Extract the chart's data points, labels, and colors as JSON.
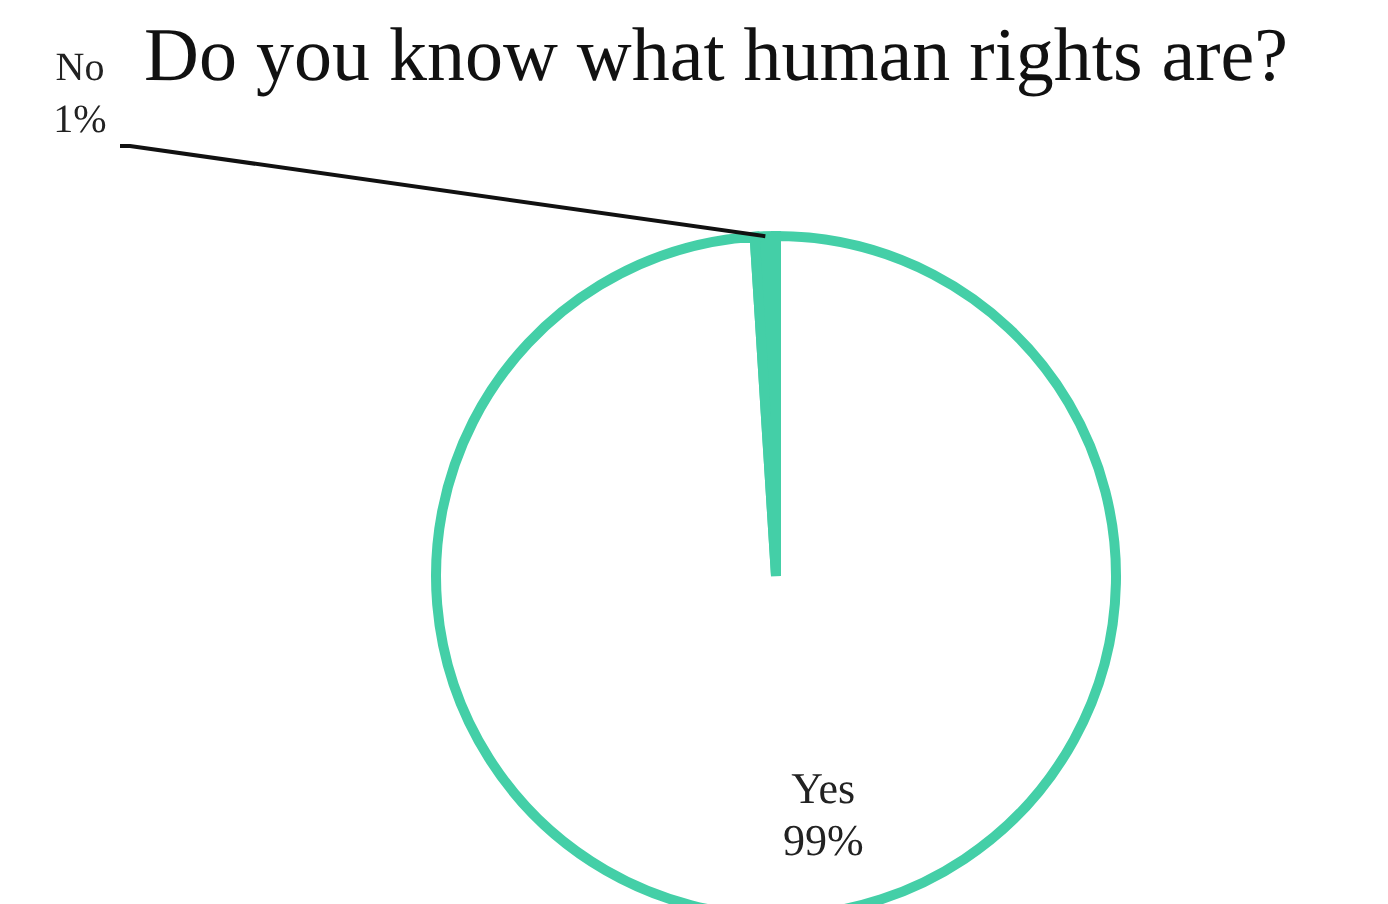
{
  "chart_data": {
    "type": "pie",
    "title": "Do you know what human rights are?",
    "categories": [
      "Yes",
      "No"
    ],
    "values": [
      99,
      1
    ],
    "colors": [
      "#ffffff",
      "#44cfa7"
    ],
    "value_labels": [
      "99%",
      "1%"
    ]
  }
}
